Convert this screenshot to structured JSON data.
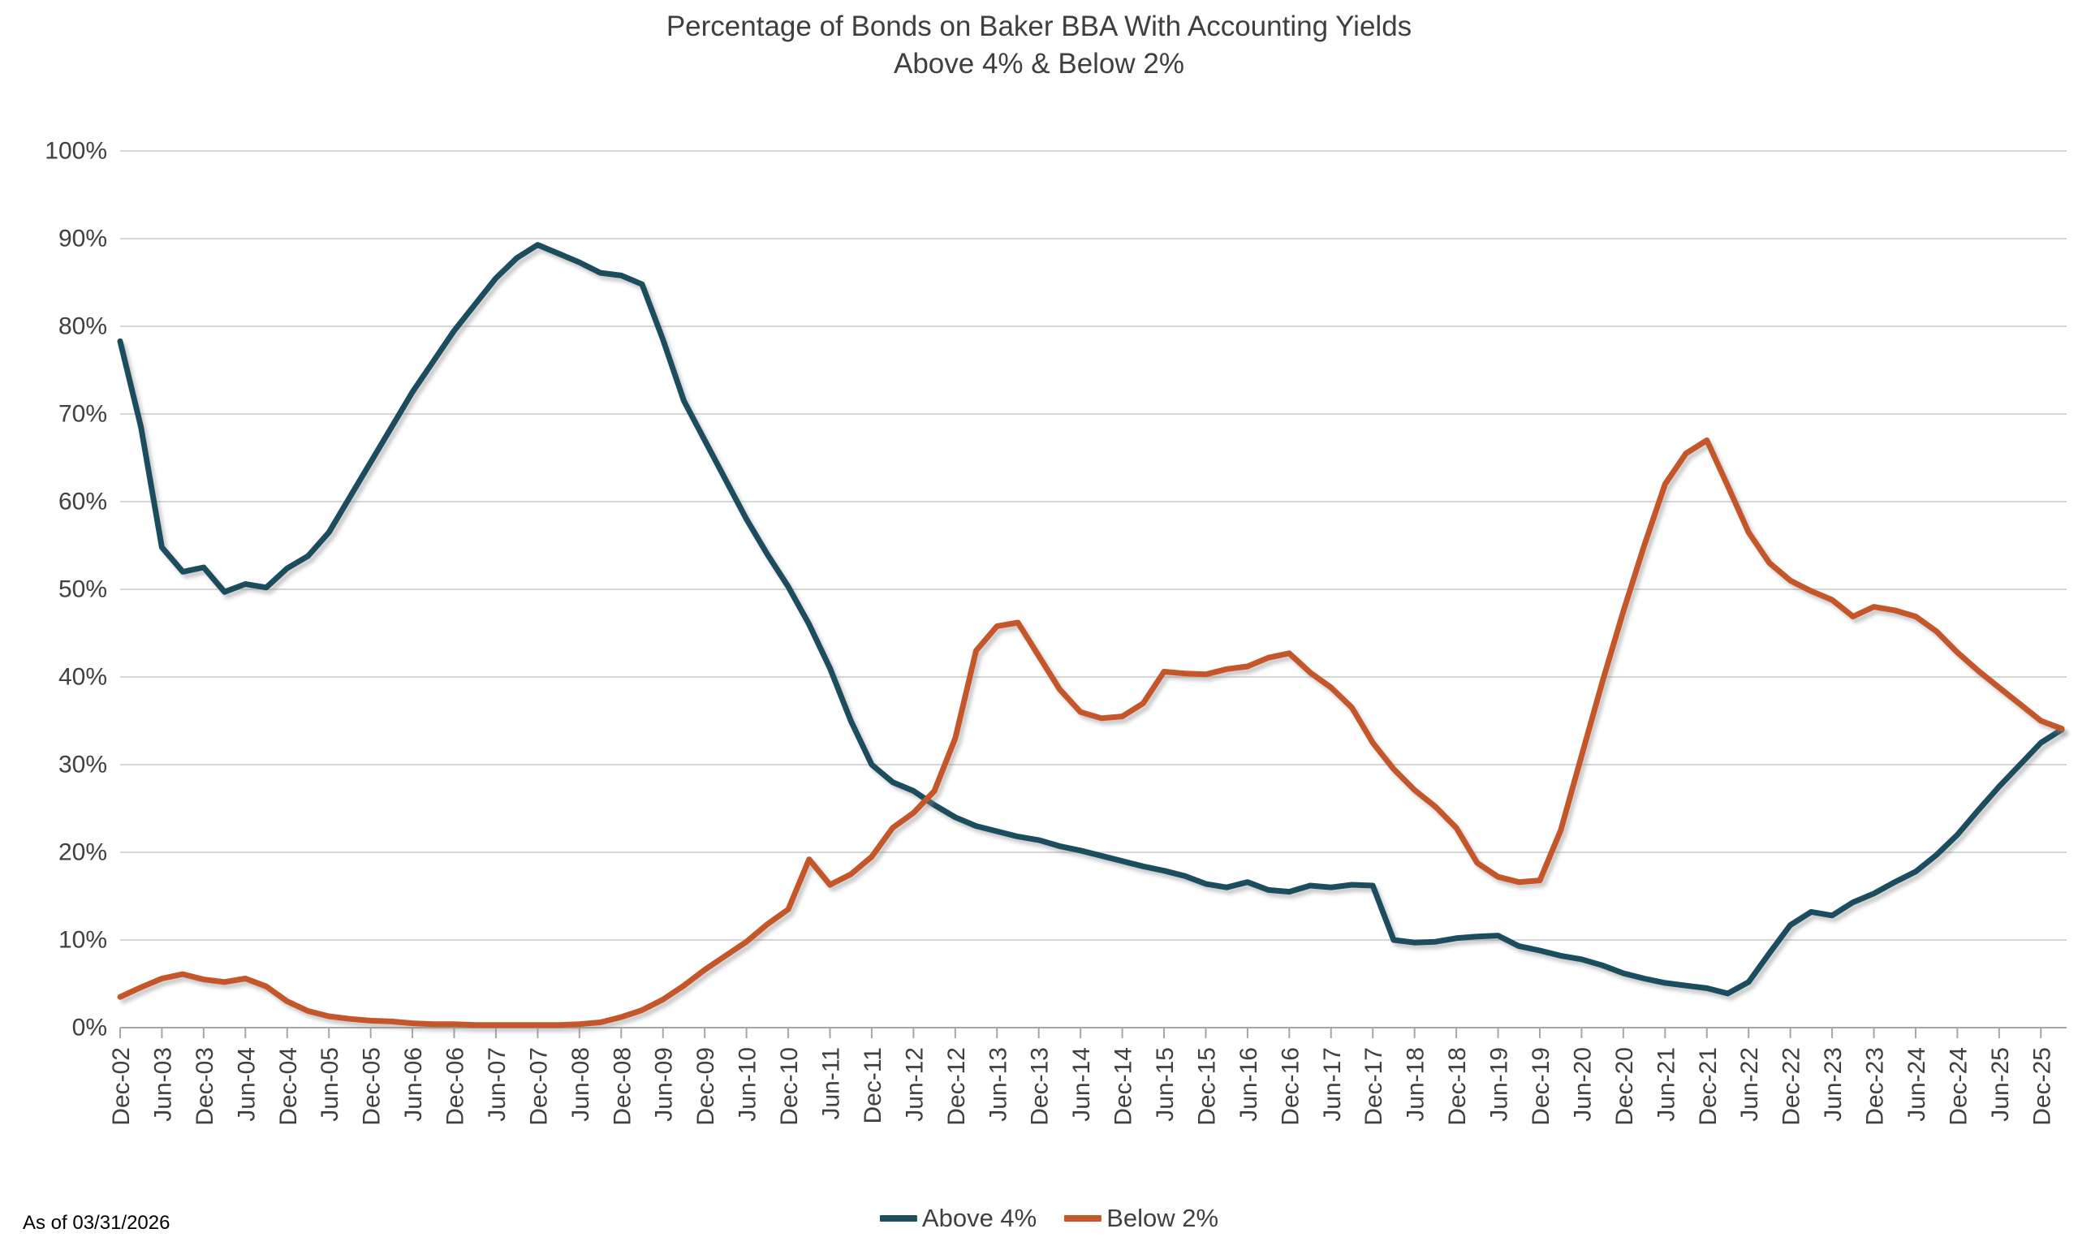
{
  "title": {
    "line1": "Percentage of Bonds on Baker BBA With Accounting Yields",
    "line2": "Above 4% & Below 2%"
  },
  "footnote": "As of 03/31/2026",
  "legend": [
    {
      "label": "Above 4%",
      "color": "#1F4E5F"
    },
    {
      "label": "Below 2%",
      "color": "#C5572B"
    }
  ],
  "colors": {
    "series_above_4": "#1F4E5F",
    "series_below_2": "#C5572B",
    "gridline": "#D6D6D6",
    "axis_line": "#A6A6A6",
    "tick_label": "#404040",
    "title_text": "#3F3F3F"
  },
  "chart_data": {
    "type": "line",
    "title": "Percentage of Bonds on Baker BBA With Accounting Yields Above 4% & Below 2%",
    "xlabel": "",
    "ylabel": "",
    "ylim": [
      0,
      100
    ],
    "yticks_percent": [
      0,
      10,
      20,
      30,
      40,
      50,
      60,
      70,
      80,
      90,
      100
    ],
    "grid": "horizontal",
    "legend_position": "bottom-center",
    "x_frequency": "quarterly",
    "x_start": "Dec-02",
    "x_end": "Mar-26",
    "x_tick_labels": [
      "Dec-02",
      "Jun-03",
      "Dec-03",
      "Jun-04",
      "Dec-04",
      "Jun-05",
      "Dec-05",
      "Jun-06",
      "Dec-06",
      "Jun-07",
      "Dec-07",
      "Jun-08",
      "Dec-08",
      "Jun-09",
      "Dec-09",
      "Jun-10",
      "Dec-10",
      "Jun-11",
      "Dec-11",
      "Jun-12",
      "Dec-12",
      "Jun-13",
      "Dec-13",
      "Jun-14",
      "Dec-14",
      "Jun-15",
      "Dec-15",
      "Jun-16",
      "Dec-16",
      "Jun-17",
      "Dec-17",
      "Jun-18",
      "Dec-18",
      "Jun-19",
      "Dec-19",
      "Jun-20",
      "Dec-20",
      "Jun-21",
      "Dec-21",
      "Jun-22",
      "Dec-22",
      "Jun-23",
      "Dec-23",
      "Jun-24",
      "Dec-24",
      "Jun-25",
      "Dec-25"
    ],
    "x_tick_label_rotation_deg": -90,
    "series": [
      {
        "name": "Above 4%",
        "color": "#1F4E5F",
        "values": [
          78.3,
          68.5,
          54.8,
          52.0,
          52.5,
          49.7,
          50.6,
          50.2,
          52.4,
          53.8,
          56.5,
          60.5,
          64.5,
          68.5,
          72.5,
          76.0,
          79.5,
          82.5,
          85.5,
          87.8,
          89.3,
          88.3,
          87.3,
          86.1,
          85.8,
          84.8,
          78.5,
          71.5,
          67.0,
          62.5,
          58.0,
          54.0,
          50.3,
          46.0,
          41.0,
          35.0,
          30.0,
          28.0,
          27.0,
          25.4,
          24.0,
          23.0,
          22.4,
          21.8,
          21.4,
          20.7,
          20.2,
          19.6,
          19.0,
          18.4,
          17.9,
          17.3,
          16.4,
          16.0,
          16.6,
          15.7,
          15.5,
          16.2,
          16.0,
          16.3,
          16.2,
          10.0,
          9.7,
          9.8,
          10.2,
          10.4,
          10.5,
          9.3,
          8.8,
          8.2,
          7.8,
          7.1,
          6.2,
          5.6,
          5.1,
          4.8,
          4.5,
          3.9,
          5.2,
          8.5,
          11.7,
          13.2,
          12.8,
          14.3,
          15.3,
          16.6,
          17.8,
          19.7,
          22.0,
          24.8,
          27.5,
          30.0,
          32.5,
          34.0
        ]
      },
      {
        "name": "Below 2%",
        "color": "#C5572B",
        "values": [
          3.5,
          4.6,
          5.6,
          6.1,
          5.5,
          5.2,
          5.6,
          4.7,
          3.0,
          1.9,
          1.3,
          1.0,
          0.8,
          0.7,
          0.5,
          0.4,
          0.4,
          0.3,
          0.3,
          0.3,
          0.3,
          0.3,
          0.4,
          0.6,
          1.2,
          2.0,
          3.2,
          4.8,
          6.6,
          8.2,
          9.8,
          11.8,
          13.5,
          19.2,
          16.3,
          17.5,
          19.5,
          22.8,
          24.5,
          27.0,
          33.0,
          43.0,
          45.8,
          46.2,
          42.4,
          38.6,
          36.0,
          35.3,
          35.5,
          37.0,
          40.6,
          40.4,
          40.3,
          40.9,
          41.2,
          42.2,
          42.7,
          40.5,
          38.8,
          36.5,
          32.5,
          29.5,
          27.1,
          25.2,
          22.8,
          18.8,
          17.2,
          16.6,
          16.8,
          22.5,
          31.0,
          39.5,
          47.5,
          55.0,
          62.0,
          65.5,
          67.0,
          61.8,
          56.5,
          53.0,
          51.0,
          49.8,
          48.8,
          46.9,
          48.0,
          47.6,
          46.9,
          45.2,
          42.8,
          40.7,
          38.8,
          36.9,
          35.0,
          34.1
        ]
      }
    ],
    "annotations": [
      "As of 03/31/2026"
    ]
  }
}
